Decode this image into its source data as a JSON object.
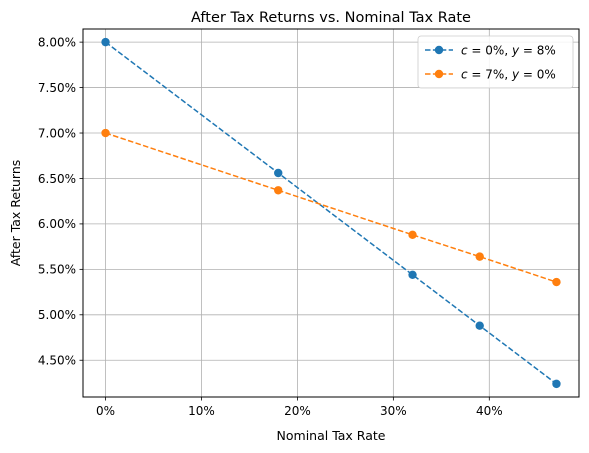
{
  "chart_data": {
    "type": "line",
    "title": "After Tax Returns vs. Nominal Tax Rate",
    "xlabel": "Nominal Tax Rate",
    "ylabel": "After Tax Returns",
    "x_unit": "percent",
    "y_unit": "percent",
    "xlim": [
      -2.35,
      49.35
    ],
    "ylim": [
      4.0955,
      8.1445
    ],
    "x_ticks": [
      0,
      10,
      20,
      30,
      40
    ],
    "x_tick_labels": [
      "0%",
      "10%",
      "20%",
      "30%",
      "40%"
    ],
    "y_ticks": [
      4.5,
      5.0,
      5.5,
      6.0,
      6.5,
      7.0,
      7.5,
      8.0
    ],
    "y_tick_labels": [
      "4.50%",
      "5.00%",
      "5.50%",
      "6.00%",
      "6.50%",
      "7.00%",
      "7.50%",
      "8.00%"
    ],
    "grid": true,
    "legend_position": "top-right",
    "x": [
      0,
      18,
      32,
      39,
      47
    ],
    "series": [
      {
        "name": "c = 0%, y = 8%",
        "legend": {
          "v1": "c",
          "val1": " = 0%, ",
          "v2": "y",
          "val2": " = 8%"
        },
        "values": [
          8.0,
          6.56,
          5.44,
          4.88,
          4.24
        ],
        "color": "#1f77b4",
        "line_style": "dashed",
        "marker": "circle"
      },
      {
        "name": "c = 7%, y = 0%",
        "legend": {
          "v1": "c",
          "val1": " = 7%, ",
          "v2": "y",
          "val2": " = 0%"
        },
        "values": [
          7.0,
          6.37,
          5.88,
          5.64,
          5.36
        ],
        "color": "#ff7f0e",
        "line_style": "dashed",
        "marker": "circle"
      }
    ]
  }
}
